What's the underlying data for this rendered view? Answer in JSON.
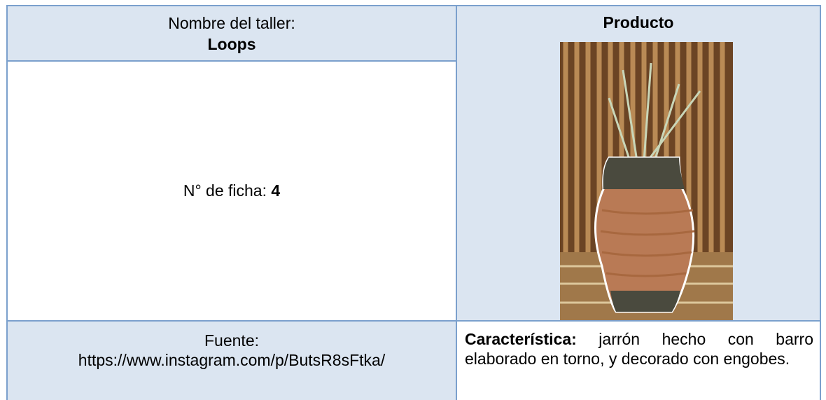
{
  "header": {
    "workshop_label": "Nombre del taller:",
    "workshop_name": "Loops",
    "product_label": "Producto"
  },
  "sheet": {
    "label": "N° de ficha: ",
    "number": "4"
  },
  "source": {
    "label": "Fuente:",
    "url": "https://www.instagram.com/p/ButsR8sFtka/"
  },
  "feature": {
    "label": "Característica:",
    "text": " jarrón hecho con barro elaborado en torno, y decorado con engobes."
  }
}
